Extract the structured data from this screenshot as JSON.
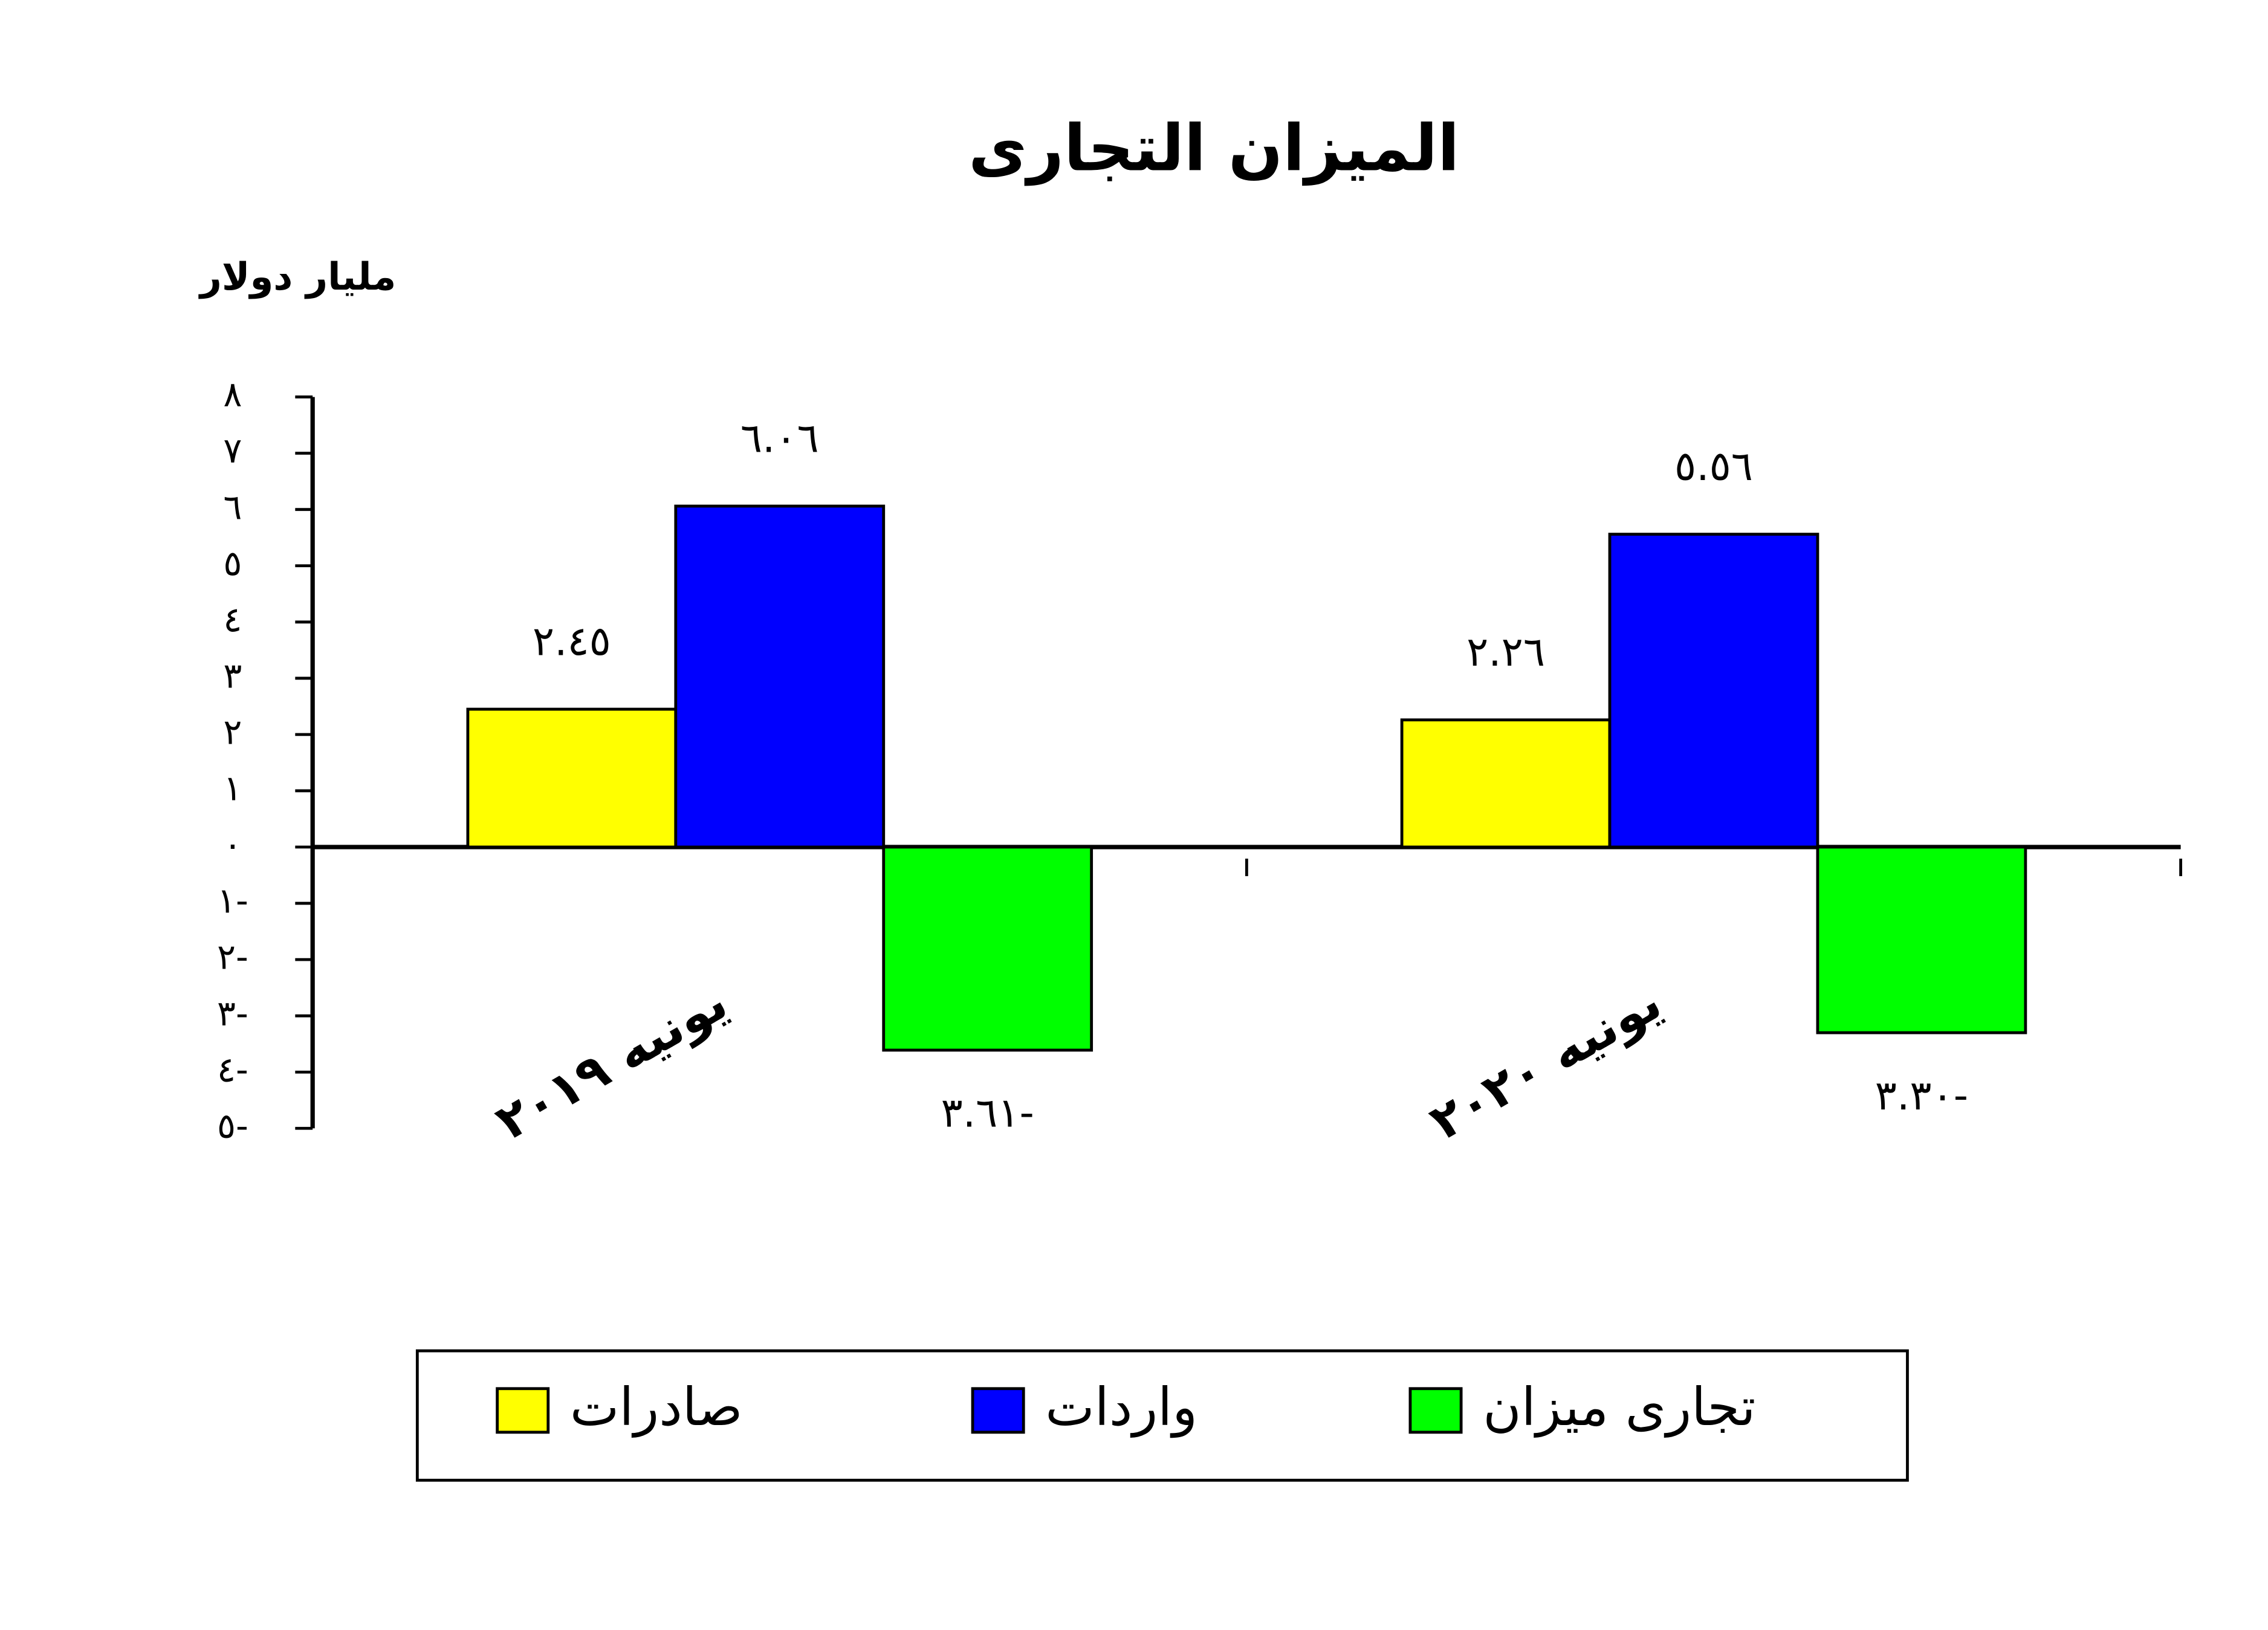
{
  "chart_data": {
    "type": "bar",
    "title": "الميزان التجارى",
    "y_label": "مليار دولار",
    "categories": [
      "يونيه ٢٠١٩",
      "يونيه ٢٠٢٠"
    ],
    "series": [
      {
        "name": "صادرات",
        "color": "#ffff00",
        "values": [
          2.45,
          2.26
        ],
        "value_labels": [
          "٢.٤٥",
          "٢.٢٦"
        ]
      },
      {
        "name": "واردات",
        "color": "#0000ff",
        "values": [
          6.06,
          5.56
        ],
        "value_labels": [
          "٦.٠٦",
          "٥.٥٦"
        ]
      },
      {
        "name": "تجارى ميزان",
        "color": "#00ff00",
        "values": [
          -3.61,
          -3.3
        ],
        "value_labels": [
          "٣.٦١-",
          "٣.٣٠-"
        ]
      }
    ],
    "ylim": [
      -5,
      8
    ],
    "yticks": [
      {
        "value": 8,
        "label": "٨"
      },
      {
        "value": 7,
        "label": "٧"
      },
      {
        "value": 6,
        "label": "٦"
      },
      {
        "value": 5,
        "label": "٥"
      },
      {
        "value": 4,
        "label": "٤"
      },
      {
        "value": 3,
        "label": "٣"
      },
      {
        "value": 2,
        "label": "٢"
      },
      {
        "value": 1,
        "label": "١"
      },
      {
        "value": 0,
        "label": "٠"
      },
      {
        "value": -1,
        "label": "١-"
      },
      {
        "value": -2,
        "label": "٢-"
      },
      {
        "value": -3,
        "label": "٣-"
      },
      {
        "value": -4,
        "label": "٤-"
      },
      {
        "value": -5,
        "label": "٥-"
      }
    ],
    "legend": "bottom"
  }
}
